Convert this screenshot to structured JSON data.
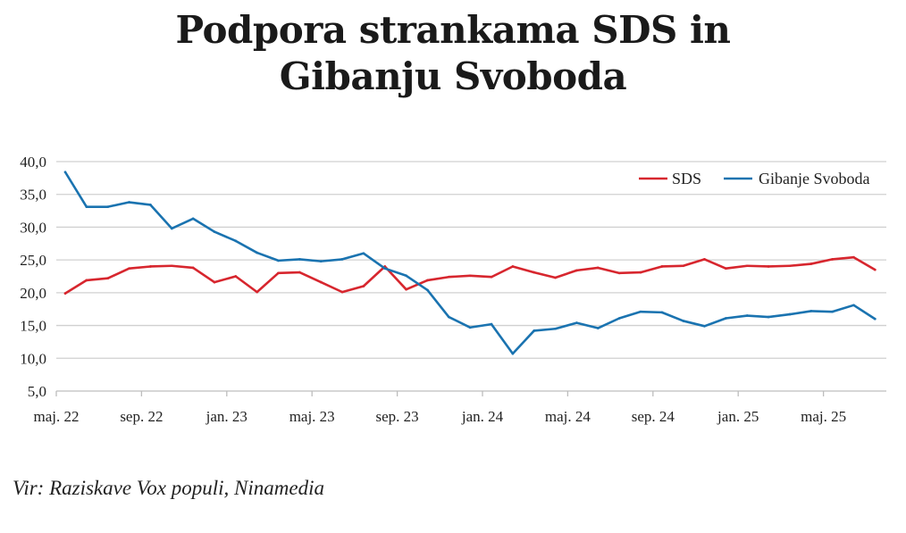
{
  "title_line1": "Podpora strankama SDS in",
  "title_line2": "Gibanju Svoboda",
  "source": "Vir: Raziskave Vox populi, Ninamedia",
  "chart_data": {
    "type": "line",
    "title": "Podpora strankama SDS in Gibanju Svoboda",
    "xlabel": "",
    "ylabel": "",
    "ylim": [
      5,
      40
    ],
    "yticks": [
      "5,0",
      "10,0",
      "15,0",
      "20,0",
      "25,0",
      "30,0",
      "35,0",
      "40,0"
    ],
    "ytick_values": [
      5,
      10,
      15,
      20,
      25,
      30,
      35,
      40
    ],
    "xticks": [
      "maj. 22",
      "sep. 22",
      "jan. 23",
      "maj. 23",
      "sep. 23",
      "jan. 24",
      "maj. 24",
      "sep. 24",
      "jan. 25",
      "maj. 25"
    ],
    "xtick_months": [
      0,
      4,
      8,
      12,
      16,
      20,
      24,
      28,
      32,
      36
    ],
    "x_start_month_offset": 0.42,
    "x_note": "monthly polls, month index from maj. 22",
    "grid": true,
    "legend": "top-right",
    "series": [
      {
        "name": "SDS",
        "color": "#d7262e",
        "values": [
          19.9,
          21.9,
          22.2,
          23.7,
          24.0,
          24.1,
          23.8,
          21.6,
          22.5,
          20.1,
          23.0,
          23.1,
          21.6,
          20.1,
          21.0,
          24.0,
          20.5,
          21.9,
          22.4,
          22.6,
          22.4,
          24.0,
          23.1,
          22.3,
          23.4,
          23.8,
          23.0,
          23.1,
          24.0,
          24.1,
          25.1,
          23.7,
          24.1,
          24.0,
          24.1,
          24.4,
          25.1,
          25.4,
          23.5
        ]
      },
      {
        "name": "Gibanje Svoboda",
        "color": "#1a73b0",
        "values": [
          38.4,
          33.1,
          33.1,
          33.8,
          33.4,
          29.8,
          31.3,
          29.3,
          27.9,
          26.1,
          24.9,
          25.1,
          24.8,
          25.1,
          26.0,
          23.7,
          22.6,
          20.4,
          16.3,
          14.7,
          15.2,
          10.7,
          14.2,
          14.5,
          15.4,
          14.6,
          16.1,
          17.1,
          17.0,
          15.7,
          14.9,
          16.1,
          16.5,
          16.3,
          16.7,
          17.2,
          17.1,
          18.1,
          16.0
        ]
      }
    ]
  }
}
